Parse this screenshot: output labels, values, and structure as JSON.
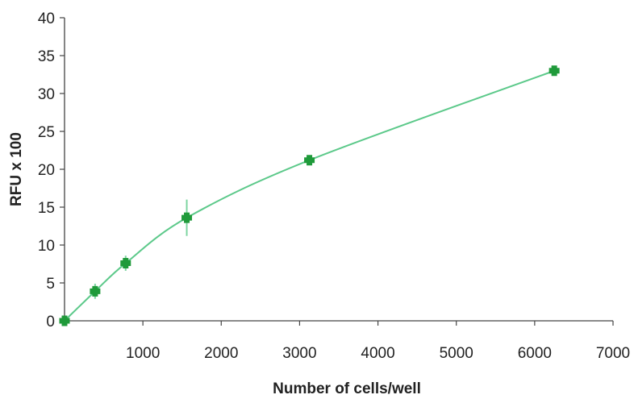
{
  "chart_data": {
    "type": "line",
    "title": "",
    "xlabel": "Number of cells/well",
    "ylabel": "RFU x 100",
    "xlim": [
      0,
      7000
    ],
    "ylim": [
      0,
      40
    ],
    "x_ticks": [
      1000,
      2000,
      3000,
      4000,
      5000,
      6000,
      7000
    ],
    "y_ticks": [
      0,
      5,
      10,
      15,
      20,
      25,
      30,
      35,
      40
    ],
    "grid": false,
    "legend": "none",
    "series": [
      {
        "x": [
          0,
          390,
          780,
          1560,
          3125,
          6250
        ],
        "y": [
          0,
          3.9,
          7.6,
          13.6,
          21.2,
          33.0
        ],
        "error": [
          0,
          1.0,
          1.0,
          2.4,
          0.5,
          0.5
        ],
        "marker_color": "#1f9a3a",
        "line_color": "#5cc98a"
      }
    ]
  }
}
